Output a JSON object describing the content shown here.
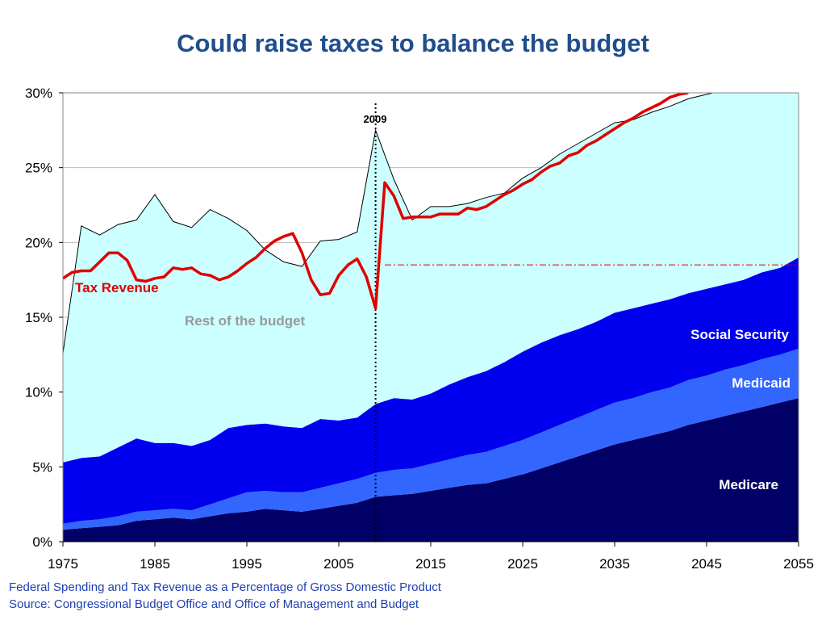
{
  "title": "Could raise taxes to balance the budget",
  "footnotes": {
    "line1": "Federal Spending and Tax Revenue as a Percentage of Gross Domestic Product",
    "line2": "Source: Congressional Budget Office and Office of Management and Budget"
  },
  "colors": {
    "medicare": "#000066",
    "medicaid": "#3366ff",
    "social_security": "#0000ee",
    "rest": "#ccffff",
    "tax": "#e00000",
    "title": "#1f4e8c"
  },
  "chart_data": {
    "type": "area",
    "xlim": [
      1975,
      2055
    ],
    "ylim": [
      0,
      30
    ],
    "xticks": [
      1975,
      1985,
      1995,
      2005,
      2015,
      2025,
      2035,
      2045,
      2055
    ],
    "yticks": [
      0,
      5,
      10,
      15,
      20,
      25,
      30
    ],
    "ytick_labels": [
      "0%",
      "5%",
      "10%",
      "15%",
      "20%",
      "25%",
      "30%"
    ],
    "grid": "horizontal",
    "x": [
      1975,
      1977,
      1979,
      1981,
      1983,
      1985,
      1987,
      1989,
      1991,
      1993,
      1995,
      1997,
      1999,
      2001,
      2003,
      2005,
      2007,
      2009,
      2011,
      2013,
      2015,
      2017,
      2019,
      2021,
      2023,
      2025,
      2027,
      2029,
      2031,
      2033,
      2035,
      2037,
      2039,
      2041,
      2043,
      2045,
      2047,
      2049,
      2051,
      2053,
      2055
    ],
    "series": [
      {
        "name": "Medicare",
        "values": [
          0.8,
          0.9,
          1.0,
          1.1,
          1.4,
          1.5,
          1.6,
          1.5,
          1.7,
          1.9,
          2.0,
          2.2,
          2.1,
          2.0,
          2.2,
          2.4,
          2.6,
          3.0,
          3.1,
          3.2,
          3.4,
          3.6,
          3.8,
          3.9,
          4.2,
          4.5,
          4.9,
          5.3,
          5.7,
          6.1,
          6.5,
          6.8,
          7.1,
          7.4,
          7.8,
          8.1,
          8.4,
          8.7,
          9.0,
          9.3,
          9.6
        ]
      },
      {
        "name": "Medicaid",
        "values": [
          0.4,
          0.5,
          0.5,
          0.6,
          0.6,
          0.6,
          0.6,
          0.6,
          0.8,
          1.0,
          1.3,
          1.2,
          1.2,
          1.3,
          1.4,
          1.5,
          1.6,
          1.6,
          1.7,
          1.7,
          1.8,
          1.9,
          2.0,
          2.1,
          2.2,
          2.3,
          2.4,
          2.5,
          2.6,
          2.7,
          2.8,
          2.8,
          2.9,
          2.9,
          3.0,
          3.0,
          3.1,
          3.1,
          3.2,
          3.2,
          3.3
        ]
      },
      {
        "name": "Social Security",
        "values": [
          4.1,
          4.2,
          4.2,
          4.6,
          4.9,
          4.5,
          4.4,
          4.3,
          4.3,
          4.7,
          4.5,
          4.5,
          4.4,
          4.3,
          4.6,
          4.2,
          4.1,
          4.6,
          4.8,
          4.6,
          4.7,
          5.0,
          5.2,
          5.4,
          5.6,
          5.9,
          6.0,
          6.0,
          5.9,
          5.9,
          6.0,
          6.0,
          5.9,
          5.9,
          5.8,
          5.8,
          5.7,
          5.7,
          5.8,
          5.8,
          6.1
        ]
      },
      {
        "name": "Rest of the budget",
        "values": [
          7.3,
          15.5,
          14.8,
          14.9,
          14.6,
          16.6,
          14.8,
          14.6,
          15.4,
          14.0,
          13.0,
          11.6,
          11.0,
          10.8,
          11.9,
          12.1,
          12.4,
          18.3,
          14.6,
          12.0,
          12.5,
          11.9,
          11.6,
          11.6,
          11.3,
          11.6,
          11.7,
          12.1,
          12.4,
          12.6,
          12.7,
          12.6,
          12.8,
          12.9,
          13.0,
          13.0,
          13.0,
          13.1,
          13.1,
          13.2,
          13.3
        ]
      }
    ],
    "tax_revenue": {
      "name": "Tax Revenue",
      "x": [
        1975,
        1976,
        1977,
        1978,
        1979,
        1980,
        1981,
        1982,
        1983,
        1984,
        1985,
        1986,
        1987,
        1988,
        1989,
        1990,
        1991,
        1992,
        1993,
        1994,
        1995,
        1996,
        1997,
        1998,
        1999,
        2000,
        2001,
        2002,
        2003,
        2004,
        2005,
        2006,
        2007,
        2008,
        2009,
        2010,
        2011,
        2012,
        2013,
        2014,
        2015,
        2016,
        2017,
        2018,
        2019,
        2020,
        2021,
        2022,
        2023,
        2024,
        2025,
        2026,
        2027,
        2028,
        2029,
        2030,
        2031,
        2032,
        2033,
        2034,
        2035,
        2036,
        2037,
        2038,
        2039,
        2040,
        2041,
        2042,
        2043
      ],
      "values": [
        17.6,
        18.0,
        18.1,
        18.1,
        18.7,
        19.3,
        19.3,
        18.8,
        17.5,
        17.4,
        17.6,
        17.7,
        18.3,
        18.2,
        18.3,
        17.9,
        17.8,
        17.5,
        17.7,
        18.1,
        18.6,
        19.0,
        19.6,
        20.1,
        20.4,
        20.6,
        19.3,
        17.5,
        16.5,
        16.6,
        17.8,
        18.5,
        18.9,
        17.7,
        15.6,
        24.0,
        23.1,
        21.6,
        21.7,
        21.7,
        21.7,
        21.9,
        21.9,
        21.9,
        22.3,
        22.2,
        22.4,
        22.8,
        23.2,
        23.5,
        23.9,
        24.2,
        24.7,
        25.1,
        25.3,
        25.8,
        26.0,
        26.5,
        26.8,
        27.2,
        27.6,
        28.0,
        28.3,
        28.7,
        29.0,
        29.3,
        29.7,
        29.9,
        30.0
      ]
    },
    "reference_line": {
      "x_start": 2010,
      "value": 18.5
    },
    "marker": {
      "x": 2009,
      "label": "2009"
    },
    "annotations": {
      "tax_revenue": "Tax Revenue",
      "rest": "Rest of the budget",
      "social_security": "Social Security",
      "medicaid": "Medicaid",
      "medicare": "Medicare"
    }
  }
}
